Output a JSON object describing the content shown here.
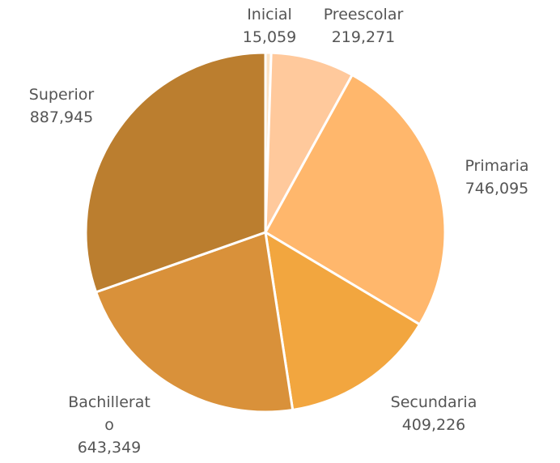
{
  "chart_data": {
    "type": "pie",
    "categories": [
      "Inicial",
      "Preescolar",
      "Primaria",
      "Secundaria",
      "Bachillerato",
      "Superior"
    ],
    "values": [
      15059,
      219271,
      746095,
      409226,
      643349,
      887945
    ],
    "value_labels": [
      "15,059",
      "219,271",
      "746,095",
      "409,226",
      "643,349",
      "887,945"
    ],
    "colors": [
      "#fde3c4",
      "#ffc99c",
      "#ffb76c",
      "#f2a63f",
      "#d9913a",
      "#bb7e2f"
    ]
  }
}
